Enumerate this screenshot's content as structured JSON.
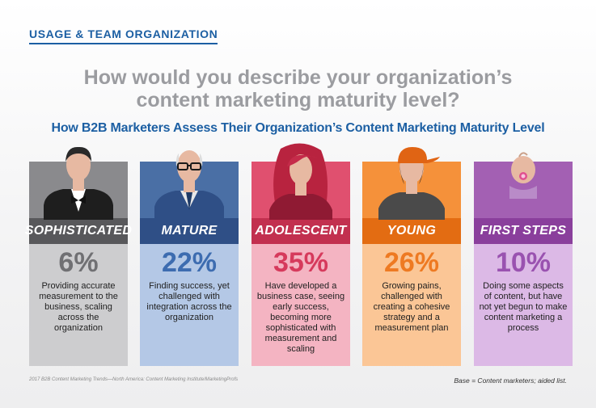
{
  "header": {
    "section_label": "USAGE & TEAM ORGANIZATION",
    "question_line1": "How would you describe your organization’s",
    "question_line2": "content marketing maturity level?",
    "subtitle": "How B2B Marketers Assess Their Organization’s Content Marketing Maturity Level"
  },
  "chart_data": {
    "type": "bar",
    "title": "How B2B Marketers Assess Their Organization’s Content Marketing Maturity Level",
    "categories": [
      "SOPHISTICATED",
      "MATURE",
      "ADOLESCENT",
      "YOUNG",
      "FIRST STEPS"
    ],
    "values": [
      6,
      22,
      35,
      26,
      10
    ],
    "value_labels": [
      "6%",
      "22%",
      "35%",
      "26%",
      "10%"
    ],
    "descriptions": [
      "Providing accurate measurement to the business, scaling across the organization",
      "Finding success, yet challenged with integration across the organization",
      "Have developed a business case, seeing early success, becoming more sophisticated with measurement and scaling",
      "Growing pains, challenged with creating a cohesive strategy and a measurement plan",
      "Doing some aspects of content, but have not yet begun to make content marketing a process"
    ],
    "colors": {
      "top": [
        "#8a8a8d",
        "#4a6fa5",
        "#e0506f",
        "#f5913a",
        "#a360b3"
      ],
      "band": [
        "#58585b",
        "#2f4f86",
        "#c2304f",
        "#e36c12",
        "#8a3f9c"
      ],
      "bottom": [
        "#cdcdcf",
        "#b4c8e6",
        "#f4b4c2",
        "#fbc696",
        "#dcb9e6"
      ],
      "value": [
        "#707073",
        "#3d6cb0",
        "#d63a5c",
        "#ee7a22",
        "#9a52b0"
      ]
    },
    "icons": [
      "tuxedo-man-icon",
      "elderly-man-glasses-icon",
      "teen-girl-icon",
      "young-man-cap-icon",
      "baby-pacifier-icon"
    ]
  },
  "footer": {
    "source": "2017 B2B Content Marketing Trends—North America: Content Marketing Institute/MarketingProfs",
    "base": "Base = Content marketers; aided list."
  }
}
